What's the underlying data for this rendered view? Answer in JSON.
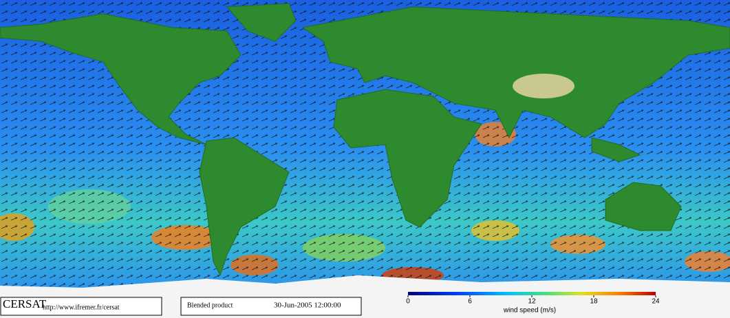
{
  "footer": {
    "logo": "CERSAT",
    "url": "http://www.ifremer.fr/cersat",
    "product": "Blended product",
    "timestamp": "30-Jun-2005 12:00:00"
  },
  "colorbar": {
    "label": "wind speed (m/s)",
    "range": [
      0,
      24
    ],
    "ticks": [
      0,
      6,
      12,
      18,
      24
    ]
  }
}
